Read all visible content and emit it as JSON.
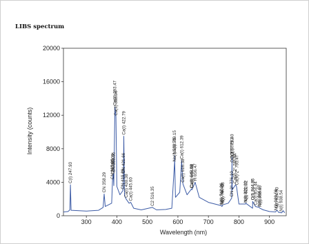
{
  "chart_data": {
    "type": "line",
    "title": "LIBS spectrum",
    "xlabel": "Wavelength (nm)",
    "ylabel": "Intensity (counts)",
    "xlim": [
      225,
      955
    ],
    "ylim": [
      0,
      20000
    ],
    "xticks": [
      300,
      400,
      500,
      600,
      700,
      800,
      900
    ],
    "yticks": [
      0,
      4000,
      8000,
      12000,
      16000,
      20000
    ],
    "grid": false,
    "line_color": "#3b5aa5",
    "series": [
      {
        "x": [
          225,
          240,
          246,
          247.9,
          250,
          300,
          340,
          355,
          358.3,
          362,
          383,
          385.8,
          387,
          388.3,
          390,
          393.5,
          396.9,
          400,
          410,
          419.6,
          421.7,
          422.7,
          425,
          430.3,
          440,
          445.6,
          455,
          480,
          516.4,
          530,
          560,
          580,
          588.8,
          589.2,
          592,
          606,
          612.4,
          616.4,
          630,
          644.8,
          646,
          656.5,
          670,
          700,
          742.4,
          744.4,
          747.0,
          765,
          776.2,
          777.4,
          778,
          789,
          792,
          800,
          821.6,
          822.3,
          844.6,
          845,
          854.2,
          866.5,
          868.6,
          880,
          900,
          920.4,
          924.5,
          930,
          940,
          945,
          950
        ],
        "y": [
          450,
          500,
          700,
          3700,
          650,
          550,
          650,
          1000,
          2600,
          1100,
          1500,
          4200,
          4800,
          5000,
          3600,
          13000,
          11800,
          3500,
          2500,
          3000,
          4900,
          9500,
          2400,
          2000,
          1500,
          1600,
          900,
          700,
          1000,
          700,
          750,
          900,
          6300,
          7200,
          2200,
          2800,
          6600,
          3800,
          2500,
          3200,
          3100,
          4000,
          2200,
          1600,
          1200,
          1100,
          1300,
          1500,
          2100,
          7000,
          3100,
          3700,
          3500,
          1400,
          1400,
          1500,
          900,
          1700,
          1100,
          1000,
          900,
          700,
          500,
          450,
          700,
          400,
          350,
          600,
          350
        ]
      }
    ],
    "peaks": [
      {
        "label": "C(I) 247.93",
        "x": 247.93,
        "y": 3700
      },
      {
        "label": "CN 358.29",
        "x": 358.29,
        "y": 2600
      },
      {
        "label": "CN 385.03",
        "x": 385.8,
        "y": 4200
      },
      {
        "label": "CN 387.00",
        "x": 387.0,
        "y": 4800
      },
      {
        "label": "CN 388.05",
        "x": 388.3,
        "y": 5000
      },
      {
        "label": "Ca(II) 393.47",
        "x": 393.47,
        "y": 13000
      },
      {
        "label": "Ca(II) 396.96",
        "x": 396.96,
        "y": 11800
      },
      {
        "label": "CN 421.66",
        "x": 421.66,
        "y": 4900
      },
      {
        "label": "CN 419.66",
        "x": 419.66,
        "y": 3000
      },
      {
        "label": "Ca(I) 422.79",
        "x": 422.79,
        "y": 9500
      },
      {
        "label": "Ca(I) 430.38",
        "x": 430.38,
        "y": 2000
      },
      {
        "label": "Ca(I) 445.60",
        "x": 445.6,
        "y": 1600
      },
      {
        "label": "C2 516.35",
        "x": 516.35,
        "y": 1000
      },
      {
        "label": "Na(I) 588.75",
        "x": 588.75,
        "y": 6300
      },
      {
        "label": "Na(I) 589.15",
        "x": 589.15,
        "y": 7200
      },
      {
        "label": "Ca(I) 612.39",
        "x": 612.39,
        "y": 6600
      },
      {
        "label": "Ca(I) 616.38",
        "x": 616.38,
        "y": 3800
      },
      {
        "label": "Ca(I) 644.98",
        "x": 644.98,
        "y": 3200
      },
      {
        "label": "Ca(I) 645.88",
        "x": 645.88,
        "y": 3100
      },
      {
        "label": "H 656.47",
        "x": 656.47,
        "y": 4000
      },
      {
        "label": "N(I) 742.36",
        "x": 742.36,
        "y": 1200
      },
      {
        "label": "N(I) 744.43",
        "x": 744.43,
        "y": 1100
      },
      {
        "label": "N(I) 747.03",
        "x": 747.03,
        "y": 1300
      },
      {
        "label": "CN 2° 776.10",
        "x": 776.1,
        "y": 2100
      },
      {
        "label": "O(I) 777.40",
        "x": 777.4,
        "y": 7000
      },
      {
        "label": "O(I) 777.63",
        "x": 777.63,
        "y": 6600
      },
      {
        "label": "O(I) 777.75",
        "x": 777.75,
        "y": 6200
      },
      {
        "label": "Ca(II) 2° 786.94",
        "x": 786.94,
        "y": 3700
      },
      {
        "label": "Ca(II) 2° 793.47",
        "x": 793.47,
        "y": 3500
      },
      {
        "label": "N(I) 821.63",
        "x": 821.63,
        "y": 1400
      },
      {
        "label": "N(I) 822.32",
        "x": 822.32,
        "y": 1500
      },
      {
        "label": "O(I) 844.85",
        "x": 844.85,
        "y": 1700
      },
      {
        "label": "O(I) 844.86",
        "x": 844.86,
        "y": 1700
      },
      {
        "label": "Ca(I) 854.44",
        "x": 854.44,
        "y": 1100
      },
      {
        "label": "N(I) 866.57",
        "x": 866.57,
        "y": 1000
      },
      {
        "label": "N(I) 868.65",
        "x": 868.65,
        "y": 900
      },
      {
        "label": "N(I) 920.59",
        "x": 920.59,
        "y": 450
      },
      {
        "label": "N(I) 924.50",
        "x": 924.5,
        "y": 700
      },
      {
        "label": "N(I) 938.54",
        "x": 938.54,
        "y": 350
      }
    ]
  }
}
